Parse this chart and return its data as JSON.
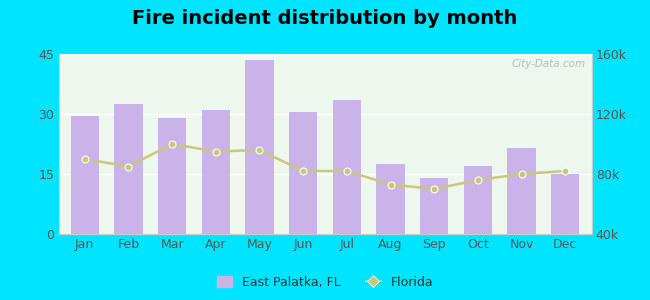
{
  "title": "Fire incident distribution by month",
  "months": [
    "Jan",
    "Feb",
    "Mar",
    "Apr",
    "May",
    "Jun",
    "Jul",
    "Aug",
    "Sep",
    "Oct",
    "Nov",
    "Dec"
  ],
  "bar_values": [
    29.5,
    32.5,
    29,
    31,
    43.5,
    30.5,
    33.5,
    17.5,
    14,
    17,
    21.5,
    15
  ],
  "line_values": [
    90000,
    85000,
    100000,
    95000,
    96000,
    82000,
    82000,
    73000,
    70000,
    76000,
    80000,
    82000
  ],
  "bar_color": "#c9b3e8",
  "line_color": "#c8c87a",
  "bar_ylim": [
    0,
    45
  ],
  "line_ylim": [
    40000,
    160000
  ],
  "left_yticks": [
    0,
    15,
    30,
    45
  ],
  "right_yticks": [
    40000,
    80000,
    120000,
    160000
  ],
  "right_yticklabels": [
    "40k",
    "80k",
    "120k",
    "160k"
  ],
  "plot_bg_color_top": "#f0f8f0",
  "plot_bg_color_bottom": "#e8f5e9",
  "outer_background": "#00e5ff",
  "title_fontsize": 14,
  "watermark": "City-Data.com",
  "legend_labels": [
    "East Palatka, FL",
    "Florida"
  ]
}
